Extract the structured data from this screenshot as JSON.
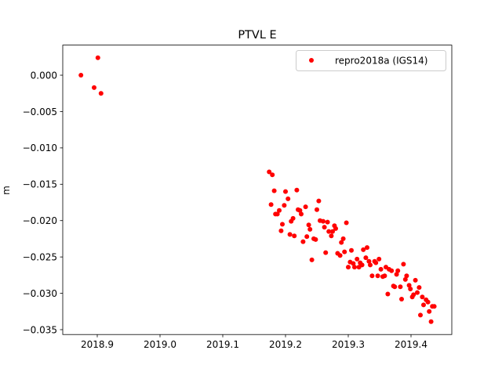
{
  "chart_data": {
    "type": "scatter",
    "title": "PTVL E",
    "xlabel": "",
    "ylabel": "m",
    "xlim": [
      2018.845,
      2019.465
    ],
    "ylim": [
      -0.03567,
      0.00414
    ],
    "xticks": [
      2018.9,
      2019.0,
      2019.1,
      2019.2,
      2019.3,
      2019.4
    ],
    "xtick_labels": [
      "2018.9",
      "2019.0",
      "2019.1",
      "2019.2",
      "2019.3",
      "2019.4"
    ],
    "yticks": [
      0.0,
      -0.005,
      -0.01,
      -0.015,
      -0.02,
      -0.025,
      -0.03,
      -0.035
    ],
    "ytick_labels": [
      "0.000",
      "−0.005",
      "−0.010",
      "−0.015",
      "−0.020",
      "−0.025",
      "−0.030",
      "−0.035"
    ],
    "grid": false,
    "legend_position": "top-right",
    "series": [
      {
        "name": "repro2018a (IGS14)",
        "color": "#ff0000",
        "marker": "circle",
        "x": [
          2018.874,
          2018.895,
          2018.901,
          2018.906,
          2019.174,
          2019.179,
          2019.182,
          2019.2,
          2019.218,
          2019.204,
          2019.177,
          2019.198,
          2019.19,
          2019.253,
          2019.232,
          2019.22,
          2019.223,
          2019.25,
          2019.184,
          2019.187,
          2019.225,
          2019.212,
          2019.209,
          2019.195,
          2019.237,
          2019.239,
          2019.255,
          2019.26,
          2019.267,
          2019.297,
          2019.262,
          2019.278,
          2019.28,
          2019.269,
          2019.275,
          2019.193,
          2019.207,
          2019.214,
          2019.234,
          2019.245,
          2019.248,
          2019.228,
          2019.273,
          2019.292,
          2019.289,
          2019.264,
          2019.242,
          2019.283,
          2019.287,
          2019.294,
          2019.305,
          2019.314,
          2019.303,
          2019.3,
          2019.31,
          2019.317,
          2019.324,
          2019.33,
          2019.328,
          2019.333,
          2019.335,
          2019.308,
          2019.319,
          2019.322,
          2019.342,
          2019.344,
          2019.349,
          2019.352,
          2019.338,
          2019.347,
          2019.355,
          2019.358,
          2019.36,
          2019.365,
          2019.369,
          2019.379,
          2019.377,
          2019.388,
          2019.393,
          2019.391,
          2019.372,
          2019.374,
          2019.383,
          2019.397,
          2019.399,
          2019.407,
          2019.413,
          2019.41,
          2019.404,
          2019.402,
          2019.363,
          2019.385,
          2019.418,
          2019.424,
          2019.427,
          2019.42,
          2019.434,
          2019.437,
          2019.429,
          2019.415,
          2019.432
        ],
        "y": [
          0.0,
          -0.0017,
          0.0024,
          -0.0025,
          -0.0133,
          -0.0137,
          -0.0159,
          -0.016,
          -0.0158,
          -0.017,
          -0.0178,
          -0.0179,
          -0.0186,
          -0.0173,
          -0.0181,
          -0.0185,
          -0.0186,
          -0.0185,
          -0.0191,
          -0.0191,
          -0.0191,
          -0.0197,
          -0.0201,
          -0.0205,
          -0.0206,
          -0.0212,
          -0.02,
          -0.0201,
          -0.0202,
          -0.0203,
          -0.0209,
          -0.0207,
          -0.0211,
          -0.0215,
          -0.0215,
          -0.0214,
          -0.0219,
          -0.0221,
          -0.0222,
          -0.0225,
          -0.0226,
          -0.0229,
          -0.0221,
          -0.0225,
          -0.023,
          -0.0244,
          -0.0254,
          -0.0245,
          -0.0248,
          -0.0243,
          -0.0241,
          -0.0253,
          -0.0257,
          -0.0264,
          -0.0264,
          -0.0264,
          -0.024,
          -0.0237,
          -0.0251,
          -0.0256,
          -0.0261,
          -0.0259,
          -0.0258,
          -0.0261,
          -0.0256,
          -0.0258,
          -0.0253,
          -0.0267,
          -0.0276,
          -0.0276,
          -0.0277,
          -0.0276,
          -0.0264,
          -0.0267,
          -0.0269,
          -0.0269,
          -0.0274,
          -0.026,
          -0.0276,
          -0.0281,
          -0.029,
          -0.0291,
          -0.0291,
          -0.0289,
          -0.0294,
          -0.0282,
          -0.0292,
          -0.0299,
          -0.0302,
          -0.0305,
          -0.0301,
          -0.0308,
          -0.0305,
          -0.0309,
          -0.0312,
          -0.0316,
          -0.0318,
          -0.0318,
          -0.0325,
          -0.033,
          -0.0339
        ]
      }
    ]
  }
}
